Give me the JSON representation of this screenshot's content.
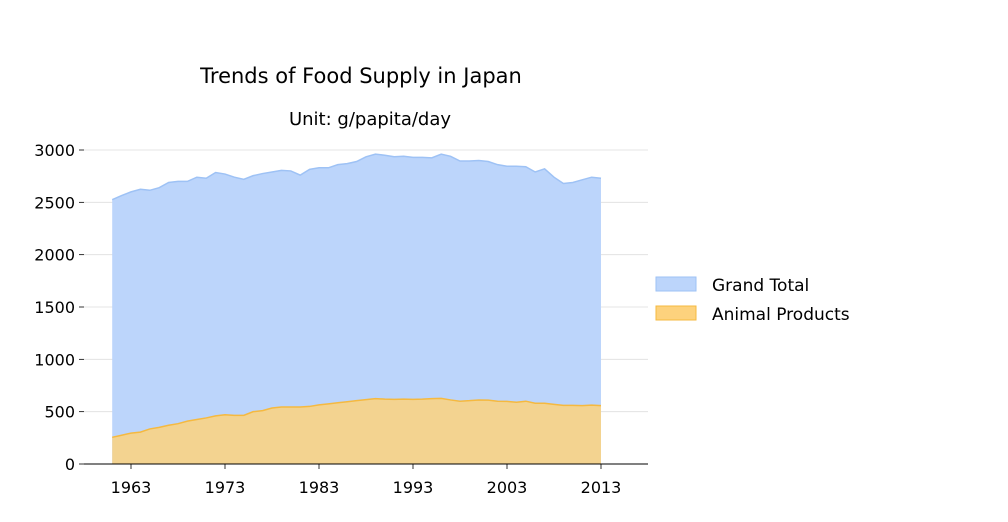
{
  "chart_data": {
    "type": "area",
    "title": "Trends of Food Supply in Japan",
    "subtitle": "Unit: g/papita/day",
    "xlabel": "",
    "ylabel": "",
    "xlim": [
      1958,
      2018
    ],
    "ylim": [
      0,
      3000
    ],
    "x_ticks": [
      "1963",
      "1973",
      "1983",
      "1993",
      "2003",
      "2013"
    ],
    "x_tick_values": [
      1963,
      1973,
      1983,
      1993,
      2003,
      2013
    ],
    "y_ticks": [
      "0",
      "500",
      "1000",
      "1500",
      "2000",
      "2500",
      "3000"
    ],
    "y_tick_values": [
      0,
      500,
      1000,
      1500,
      2000,
      2500,
      3000
    ],
    "grid": "horizontal",
    "legend_position": "right",
    "x": [
      1961,
      1962,
      1963,
      1964,
      1965,
      1966,
      1967,
      1968,
      1969,
      1970,
      1971,
      1972,
      1973,
      1974,
      1975,
      1976,
      1977,
      1978,
      1979,
      1980,
      1981,
      1982,
      1983,
      1984,
      1985,
      1986,
      1987,
      1988,
      1989,
      1990,
      1991,
      1992,
      1993,
      1994,
      1995,
      1996,
      1997,
      1998,
      1999,
      2000,
      2001,
      2002,
      2003,
      2004,
      2005,
      2006,
      2007,
      2008,
      2009,
      2010,
      2011,
      2012,
      2013
    ],
    "series": [
      {
        "name": "Grand Total",
        "color": "#9ec2f5",
        "fill": "#bcd5fb",
        "values": [
          2525,
          2565,
          2600,
          2625,
          2615,
          2640,
          2690,
          2700,
          2700,
          2740,
          2730,
          2785,
          2770,
          2740,
          2720,
          2755,
          2775,
          2790,
          2805,
          2800,
          2760,
          2815,
          2830,
          2830,
          2860,
          2870,
          2890,
          2935,
          2960,
          2950,
          2935,
          2940,
          2930,
          2930,
          2925,
          2960,
          2940,
          2895,
          2895,
          2900,
          2890,
          2860,
          2845,
          2845,
          2840,
          2790,
          2820,
          2740,
          2680,
          2690,
          2715,
          2740,
          2730
        ]
      },
      {
        "name": "Animal Products",
        "color": "#f5b940",
        "fill": "#fdd27d",
        "values": [
          255,
          275,
          295,
          305,
          335,
          350,
          370,
          385,
          410,
          425,
          440,
          460,
          470,
          465,
          465,
          500,
          510,
          535,
          545,
          545,
          545,
          550,
          565,
          575,
          585,
          595,
          605,
          615,
          625,
          620,
          618,
          620,
          618,
          620,
          625,
          627,
          612,
          600,
          605,
          612,
          610,
          600,
          598,
          590,
          600,
          580,
          580,
          570,
          560,
          560,
          558,
          562,
          558
        ]
      }
    ]
  }
}
